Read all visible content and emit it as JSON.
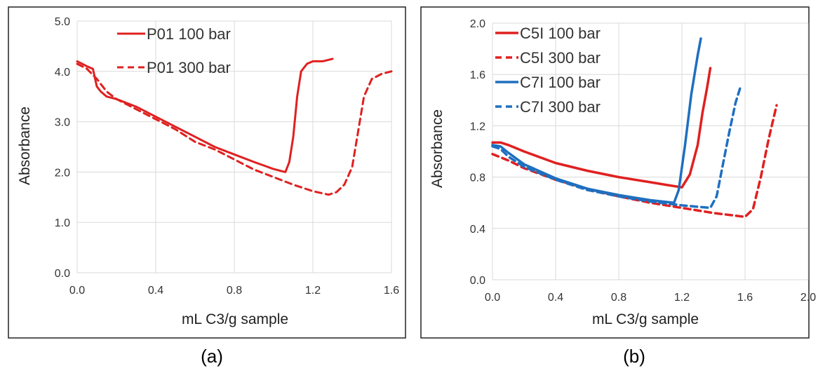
{
  "chart_data": [
    {
      "type": "line",
      "panel_caption": "(a)",
      "xlabel": "mL C3/g sample",
      "ylabel": "Absorbance",
      "xlim": [
        0,
        1.6
      ],
      "ylim": [
        0,
        5
      ],
      "x_ticks": [
        "0.0",
        "0.4",
        "0.8",
        "1.2",
        "1.6"
      ],
      "y_ticks": [
        "0.0",
        "1.0",
        "2.0",
        "3.0",
        "4.0",
        "5.0"
      ],
      "grid": true,
      "legend_position": "top-left",
      "series": [
        {
          "name": "P01 100 bar",
          "color": "#e02020",
          "dash": "solid",
          "x": [
            0.0,
            0.05,
            0.08,
            0.1,
            0.12,
            0.15,
            0.2,
            0.3,
            0.4,
            0.5,
            0.6,
            0.7,
            0.8,
            0.9,
            1.0,
            1.06,
            1.08,
            1.1,
            1.12,
            1.14,
            1.17,
            1.2,
            1.25,
            1.3
          ],
          "y": [
            4.2,
            4.1,
            4.05,
            3.7,
            3.6,
            3.5,
            3.45,
            3.3,
            3.1,
            2.9,
            2.7,
            2.5,
            2.35,
            2.2,
            2.06,
            2.0,
            2.2,
            2.7,
            3.5,
            4.0,
            4.15,
            4.2,
            4.2,
            4.25
          ]
        },
        {
          "name": "P01 300 bar",
          "color": "#e02020",
          "dash": "dashed",
          "x": [
            0.0,
            0.05,
            0.1,
            0.15,
            0.2,
            0.3,
            0.4,
            0.5,
            0.6,
            0.7,
            0.8,
            0.9,
            1.0,
            1.1,
            1.2,
            1.28,
            1.32,
            1.36,
            1.4,
            1.43,
            1.46,
            1.5,
            1.55,
            1.6
          ],
          "y": [
            4.15,
            4.05,
            3.85,
            3.6,
            3.45,
            3.25,
            3.05,
            2.85,
            2.6,
            2.45,
            2.25,
            2.05,
            1.9,
            1.75,
            1.62,
            1.55,
            1.6,
            1.75,
            2.1,
            2.8,
            3.5,
            3.85,
            3.95,
            4.0
          ]
        }
      ]
    },
    {
      "type": "line",
      "panel_caption": "(b)",
      "xlabel": "mL C3/g sample",
      "ylabel": "Absorbance",
      "xlim": [
        0,
        2
      ],
      "ylim": [
        0,
        2
      ],
      "x_ticks": [
        "0.0",
        "0.4",
        "0.8",
        "1.2",
        "1.6",
        "2.0"
      ],
      "y_ticks": [
        "0.0",
        "0.4",
        "0.8",
        "1.2",
        "1.6",
        "2.0"
      ],
      "grid": true,
      "legend_position": "top-left",
      "series": [
        {
          "name": "C5I 100 bar",
          "color": "#e02020",
          "dash": "solid",
          "x": [
            0.0,
            0.05,
            0.1,
            0.2,
            0.4,
            0.6,
            0.8,
            1.0,
            1.1,
            1.2,
            1.25,
            1.3,
            1.33,
            1.36,
            1.38
          ],
          "y": [
            1.07,
            1.07,
            1.05,
            1.0,
            0.91,
            0.85,
            0.8,
            0.76,
            0.74,
            0.72,
            0.82,
            1.05,
            1.3,
            1.5,
            1.65
          ]
        },
        {
          "name": "C5I 300 bar",
          "color": "#e02020",
          "dash": "dashed",
          "x": [
            0.0,
            0.1,
            0.2,
            0.4,
            0.6,
            0.8,
            1.0,
            1.2,
            1.4,
            1.6,
            1.65,
            1.7,
            1.75,
            1.8
          ],
          "y": [
            0.98,
            0.93,
            0.87,
            0.78,
            0.71,
            0.65,
            0.6,
            0.56,
            0.52,
            0.49,
            0.55,
            0.8,
            1.1,
            1.36
          ]
        },
        {
          "name": "C7I 100 bar",
          "color": "#1f6fc0",
          "dash": "solid",
          "x": [
            0.0,
            0.05,
            0.1,
            0.2,
            0.4,
            0.6,
            0.8,
            1.0,
            1.15,
            1.18,
            1.22,
            1.26,
            1.3,
            1.32
          ],
          "y": [
            1.05,
            1.04,
            0.99,
            0.9,
            0.79,
            0.71,
            0.66,
            0.62,
            0.6,
            0.7,
            1.05,
            1.45,
            1.75,
            1.88
          ]
        },
        {
          "name": "C7I 300 bar",
          "color": "#1f6fc0",
          "dash": "dashed",
          "x": [
            0.0,
            0.05,
            0.1,
            0.2,
            0.4,
            0.6,
            0.8,
            1.0,
            1.2,
            1.38,
            1.42,
            1.46,
            1.5,
            1.54,
            1.57
          ],
          "y": [
            1.04,
            1.02,
            0.96,
            0.88,
            0.78,
            0.7,
            0.65,
            0.61,
            0.58,
            0.56,
            0.65,
            0.9,
            1.15,
            1.38,
            1.5
          ]
        }
      ]
    }
  ]
}
